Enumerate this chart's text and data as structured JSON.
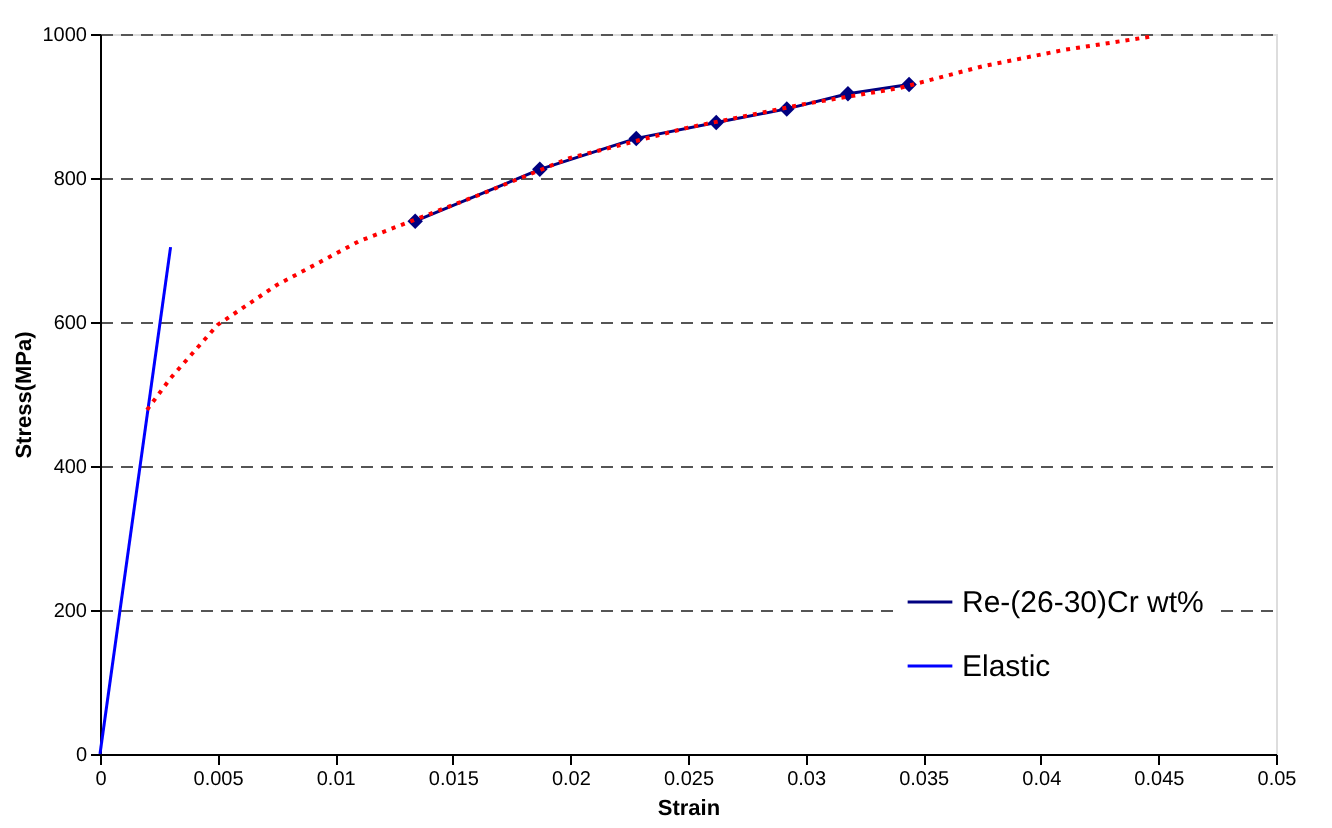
{
  "chart_data": {
    "type": "line",
    "xlabel": "Strain",
    "ylabel": "Stress(MPa)",
    "xlim": [
      0,
      0.05
    ],
    "xticks": [
      0,
      0.005,
      0.01,
      0.015,
      0.02,
      0.025,
      0.03,
      0.035,
      0.04,
      0.045,
      0.05
    ],
    "ylim": [
      0,
      1000
    ],
    "yticks": [
      0,
      200,
      400,
      600,
      800,
      1000
    ],
    "grid": "y",
    "legend": "bottom right",
    "series": [
      {
        "name": "Re-(26-30)Cr wt%",
        "color": "#000080",
        "marker": "diamond",
        "line_style": "solid",
        "x": [
          0.0134,
          0.0187,
          0.0228,
          0.0262,
          0.0292,
          0.0318,
          0.0344
        ],
        "values": [
          740,
          812,
          855,
          877,
          896,
          917,
          930
        ]
      },
      {
        "name": "Elastic",
        "color": "#0000ff",
        "marker": "none",
        "line_style": "solid",
        "x": [
          0,
          0.003
        ],
        "values": [
          0,
          704
        ]
      },
      {
        "color": "#ff0000",
        "marker": "none",
        "line_style": "dotted",
        "x": [
          0.002,
          0.003,
          0.005,
          0.0075,
          0.011,
          0.016,
          0.02,
          0.025,
          0.03,
          0.034,
          0.0375,
          0.041,
          0.0448
        ],
        "values": [
          478,
          522,
          596,
          651,
          712,
          775,
          828,
          870,
          903,
          925,
          955,
          978,
          997
        ]
      }
    ]
  }
}
